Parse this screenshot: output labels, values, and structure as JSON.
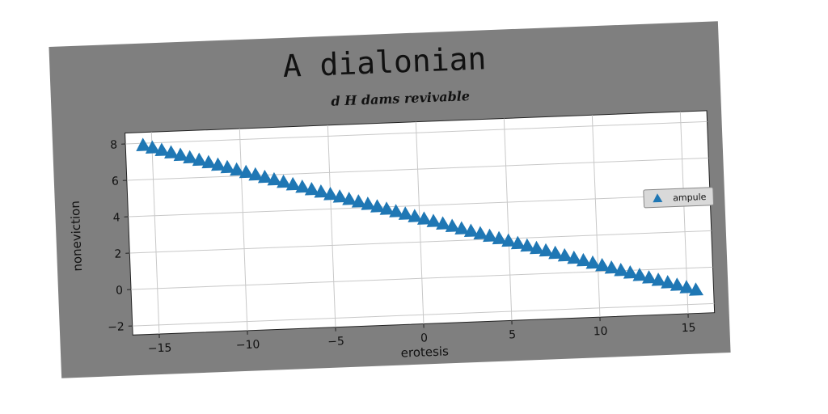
{
  "chart_data": {
    "type": "scatter",
    "title": "A dialonian",
    "subtitle": "d H dams revivable",
    "xlabel": "erotesis",
    "ylabel": "noneviction",
    "xlim": [
      -16.5,
      16.5
    ],
    "ylim": [
      -2.5,
      8.6
    ],
    "xticks": [
      -15,
      -10,
      -5,
      0,
      5,
      10,
      15
    ],
    "xtick_labels": [
      "−15",
      "−10",
      "−5",
      "0",
      "5",
      "10",
      "15"
    ],
    "yticks": [
      -2,
      0,
      2,
      4,
      6,
      8
    ],
    "ytick_labels": [
      "−2",
      "0",
      "2",
      "4",
      "6",
      "8"
    ],
    "grid": true,
    "legend_position": "center-right",
    "marker": "triangle-up",
    "series": [
      {
        "name": "ampule",
        "color": "#1f77b4",
        "x_start": -15.5,
        "x_end": 15.5,
        "n_points": 60,
        "y_start": 7.9,
        "y_end": -1.2
      }
    ]
  },
  "colors": {
    "background_card": "#7f7f7f",
    "plot_area": "#ffffff",
    "grid": "#c8c8c8"
  }
}
